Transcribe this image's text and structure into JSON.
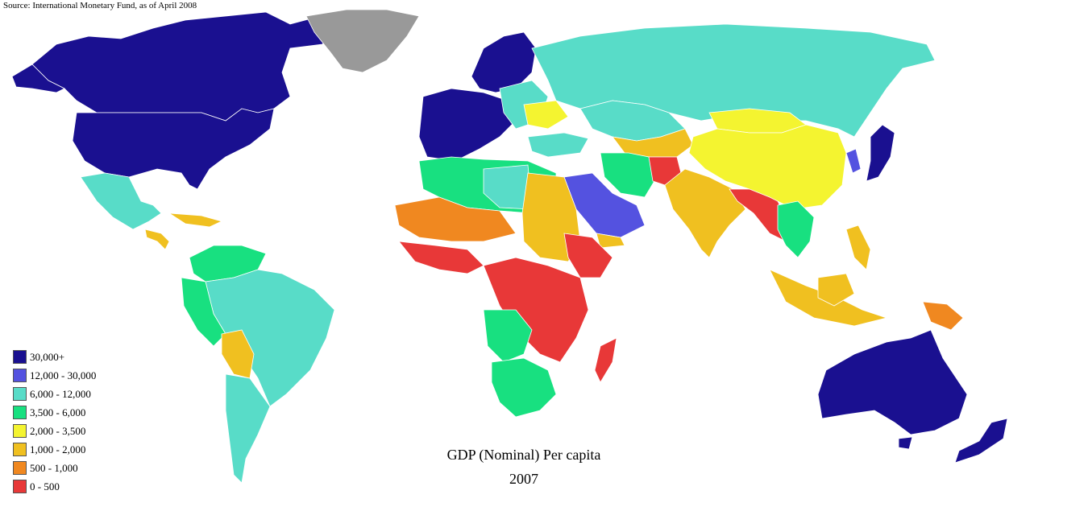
{
  "source_note": "Source: International Monetary Fund, as of April 2008",
  "title": "GDP (Nominal) Per capita",
  "year": "2007",
  "legend": [
    {
      "label": "30,000+",
      "color": "#1a1090"
    },
    {
      "label": "12,000 - 30,000",
      "color": "#5452e0"
    },
    {
      "label": "6,000 - 12,000",
      "color": "#58dcc8"
    },
    {
      "label": "3,500 - 6,000",
      "color": "#18e080"
    },
    {
      "label": "2,000 - 3,500",
      "color": "#f4f430"
    },
    {
      "label": "1,000 - 2,000",
      "color": "#f0c020"
    },
    {
      "label": "500 - 1,000",
      "color": "#f08820"
    },
    {
      "label": "0 - 500",
      "color": "#e83838"
    }
  ],
  "colors": {
    "no_data": "#999999",
    "background": "#ffffff",
    "border": "#ffffff"
  }
}
